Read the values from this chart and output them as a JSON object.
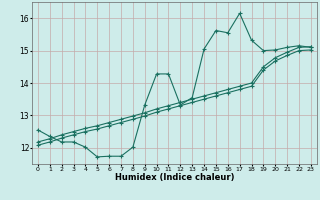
{
  "xlabel": "Humidex (Indice chaleur)",
  "bg_color": "#ceecea",
  "grid_color": "#c4aaaa",
  "line_color": "#1a7060",
  "xlim": [
    -0.5,
    23.5
  ],
  "ylim": [
    11.5,
    16.5
  ],
  "xtick_labels": [
    "0",
    "1",
    "2",
    "3",
    "4",
    "5",
    "6",
    "7",
    "8",
    "9",
    "10",
    "11",
    "12",
    "13",
    "14",
    "15",
    "16",
    "17",
    "18",
    "19",
    "20",
    "21",
    "22",
    "23"
  ],
  "yticks": [
    12,
    13,
    14,
    15,
    16
  ],
  "line1_x": [
    0,
    1,
    2,
    3,
    4,
    5,
    6,
    7,
    8,
    9,
    10,
    11,
    12,
    13,
    14,
    15,
    16,
    17,
    18,
    19,
    20,
    21,
    22,
    23
  ],
  "line1_y": [
    12.55,
    12.35,
    12.18,
    12.18,
    12.02,
    11.72,
    11.74,
    11.74,
    12.02,
    13.32,
    14.28,
    14.28,
    13.32,
    13.55,
    15.05,
    15.62,
    15.55,
    16.15,
    15.32,
    15.0,
    15.02,
    15.1,
    15.15,
    15.1
  ],
  "line2_x": [
    0,
    1,
    2,
    3,
    4,
    5,
    6,
    7,
    8,
    9,
    10,
    11,
    12,
    13,
    14,
    15,
    16,
    17,
    18,
    19,
    20,
    21,
    22,
    23
  ],
  "line2_y": [
    12.18,
    12.28,
    12.4,
    12.5,
    12.6,
    12.68,
    12.78,
    12.88,
    12.98,
    13.08,
    13.2,
    13.3,
    13.4,
    13.5,
    13.6,
    13.7,
    13.8,
    13.9,
    14.0,
    14.5,
    14.78,
    14.95,
    15.1,
    15.12
  ],
  "line3_x": [
    0,
    1,
    2,
    3,
    4,
    5,
    6,
    7,
    8,
    9,
    10,
    11,
    12,
    13,
    14,
    15,
    16,
    17,
    18,
    19,
    20,
    21,
    22,
    23
  ],
  "line3_y": [
    12.08,
    12.18,
    12.3,
    12.4,
    12.5,
    12.58,
    12.68,
    12.78,
    12.88,
    12.98,
    13.1,
    13.2,
    13.3,
    13.4,
    13.5,
    13.6,
    13.7,
    13.8,
    13.9,
    14.4,
    14.68,
    14.85,
    15.0,
    15.02
  ]
}
